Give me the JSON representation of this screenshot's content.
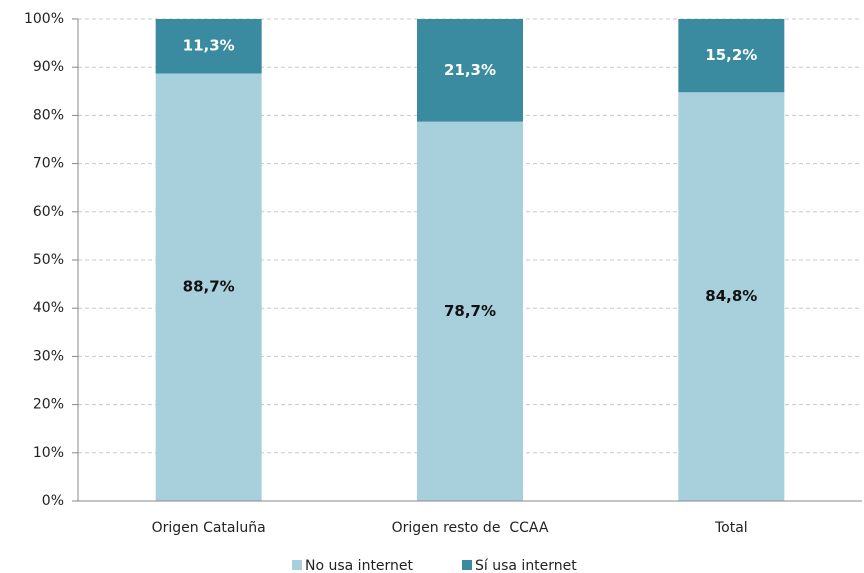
{
  "chart_data": {
    "type": "stacked_bar",
    "categories": [
      "Origen Cataluña",
      "Origen resto de  CCAA",
      "Total"
    ],
    "series": [
      {
        "name": "No usa internet",
        "color": "#a8cfdc",
        "values": [
          88.7,
          78.7,
          84.8
        ],
        "value_labels": [
          "88,7%",
          "78,7%",
          "84,8%"
        ]
      },
      {
        "name": "Sí usa internet",
        "color": "#3a8aa0",
        "values": [
          11.3,
          21.3,
          15.2
        ],
        "value_labels": [
          "11,3%",
          "21,3%",
          "15,2%"
        ]
      }
    ],
    "ylim": [
      0,
      100
    ],
    "yticks": [
      {
        "value": 0,
        "label": "0%"
      },
      {
        "value": 10,
        "label": "10%"
      },
      {
        "value": 20,
        "label": "20%"
      },
      {
        "value": 30,
        "label": "30%"
      },
      {
        "value": 40,
        "label": "40%"
      },
      {
        "value": 50,
        "label": "50%"
      },
      {
        "value": 60,
        "label": "60%"
      },
      {
        "value": 70,
        "label": "70%"
      },
      {
        "value": 80,
        "label": "80%"
      },
      {
        "value": 90,
        "label": "90%"
      },
      {
        "value": 100,
        "label": "100%"
      }
    ],
    "grid": true,
    "legend": "bottom"
  }
}
